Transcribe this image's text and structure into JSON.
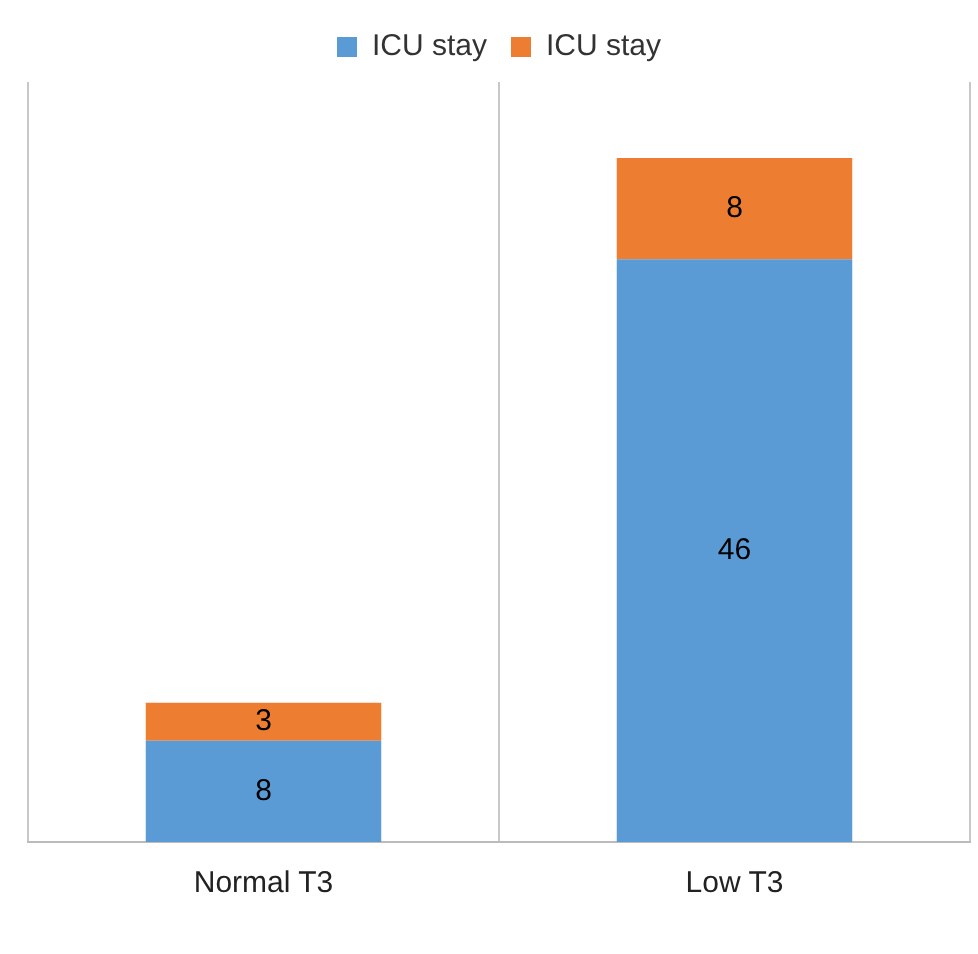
{
  "chart_data": {
    "type": "bar",
    "stacked": true,
    "categories": [
      "Normal T3",
      "Low T3"
    ],
    "series": [
      {
        "name": "ICU stay",
        "color": "#5b9bd5",
        "values": [
          8,
          46
        ],
        "value_labels": [
          "8",
          "46"
        ]
      },
      {
        "name": "ICU stay",
        "color": "#ed7d31",
        "values": [
          3,
          8
        ],
        "value_labels": [
          "3",
          "8"
        ]
      }
    ],
    "legend": "top",
    "grid": "x"
  }
}
